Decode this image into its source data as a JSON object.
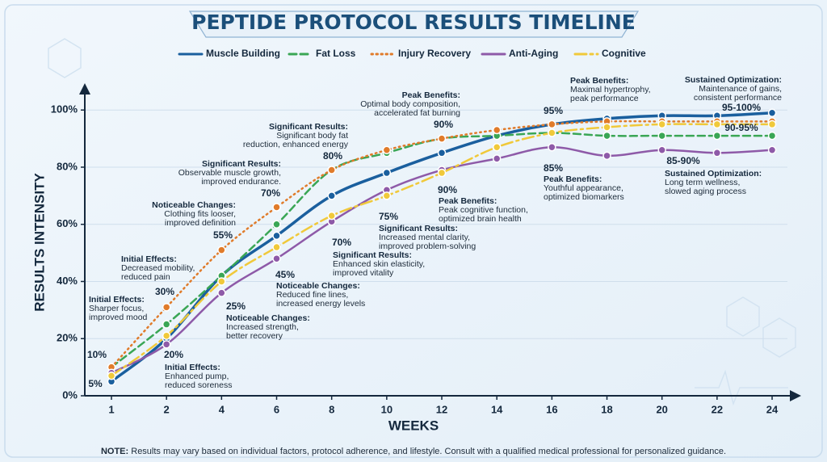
{
  "chart_data": {
    "type": "line",
    "title": "PEPTIDE PROTOCOL RESULTS TIMELINE",
    "xlabel": "WEEKS",
    "ylabel": "RESULTS INTENSITY",
    "categories": [
      "1",
      "2",
      "4",
      "6",
      "8",
      "10",
      "12",
      "14",
      "16",
      "18",
      "20",
      "22",
      "24"
    ],
    "ylim": [
      0,
      106
    ],
    "yticks": [
      {
        "value": 0,
        "label": "0%"
      },
      {
        "value": 20,
        "label": "20%"
      },
      {
        "value": 40,
        "label": "40%"
      },
      {
        "value": 60,
        "label": "60%"
      },
      {
        "value": 80,
        "label": "80%"
      },
      {
        "value": 100,
        "label": "100%"
      }
    ],
    "grid": true,
    "legend": "top",
    "series": [
      {
        "name": "Muscle Building",
        "color": "#1a5f9e",
        "style": "solid",
        "values": [
          5,
          20,
          42,
          56,
          70,
          78,
          85,
          91,
          95,
          97,
          98,
          98,
          99
        ]
      },
      {
        "name": "Fat Loss",
        "color": "#3aa655",
        "style": "dashed",
        "values": [
          10,
          25,
          42,
          60,
          79,
          85,
          90,
          91,
          92,
          91,
          91,
          91,
          91
        ]
      },
      {
        "name": "Injury Recovery",
        "color": "#e07b2a",
        "style": "dotted",
        "values": [
          10,
          31,
          51,
          66,
          79,
          86,
          90,
          93,
          95,
          96,
          96,
          96,
          96
        ]
      },
      {
        "name": "Anti-Aging",
        "color": "#8e5aa8",
        "style": "wavy",
        "values": [
          8,
          18,
          36,
          48,
          61,
          72,
          79,
          83,
          87,
          84,
          86,
          85,
          86
        ]
      },
      {
        "name": "Cognitive",
        "color": "#f0c93a",
        "style": "dashdot",
        "values": [
          7,
          21,
          40,
          52,
          63,
          70,
          78,
          87,
          92,
          94,
          95,
          95,
          95
        ]
      }
    ],
    "point_labels": [
      "10%",
      "5%",
      "30%",
      "20%",
      "55%",
      "25%",
      "70%",
      "45%",
      "80%",
      "70%",
      "75%",
      "90%",
      "90%",
      "95%",
      "85%",
      "95-100%",
      "90-95%",
      "85-90%"
    ],
    "annotations": [
      {
        "heading": "Initial Effects:",
        "lines": [
          "Sharper focus,",
          "improved mood"
        ]
      },
      {
        "heading": "Initial Effects:",
        "lines": [
          "Decreased mobility,",
          "reduced pain"
        ]
      },
      {
        "heading": "Noticeable Changes:",
        "lines": [
          "Clothing fits looser,",
          "improved definition"
        ]
      },
      {
        "heading": "Significant Results:",
        "lines": [
          "Observable muscle growth,",
          "improved endurance."
        ]
      },
      {
        "heading": "Significant Results:",
        "lines": [
          "Significant body fat",
          "reduction, enhanced energy"
        ]
      },
      {
        "heading": "Peak Benefits:",
        "lines": [
          "Optimal body composition,",
          "accelerated fat burning"
        ]
      },
      {
        "heading": "Peak Benefits:",
        "lines": [
          "Maximal hypertrophy,",
          "peak performance"
        ]
      },
      {
        "heading": "Sustained Optimization:",
        "lines": [
          "Maintenance of gains,",
          "consistent performance"
        ]
      },
      {
        "heading": "Initial Effects:",
        "lines": [
          "Enhanced pump,",
          "reduced soreness"
        ]
      },
      {
        "heading": "Noticeable Changes:",
        "lines": [
          "Increased strength,",
          "better recovery"
        ]
      },
      {
        "heading": "Noticeable Changes:",
        "lines": [
          "Reduced fine lines,",
          "increased energy levels"
        ]
      },
      {
        "heading": "Significant Results:",
        "lines": [
          "Enhanced skin elasticity,",
          "improved vitality"
        ]
      },
      {
        "heading": "Significant Results:",
        "lines": [
          "Increased mental clarity,",
          "improved problem-solving"
        ]
      },
      {
        "heading": "Peak Benefits:",
        "lines": [
          "Peak cognitive function,",
          "optimized brain health"
        ]
      },
      {
        "heading": "Peak Benefits:",
        "lines": [
          "Youthful appearance,",
          "optimized biomarkers"
        ]
      },
      {
        "heading": "Sustained Optimization:",
        "lines": [
          "Long term wellness,",
          "slowed aging process"
        ]
      }
    ]
  },
  "footer": {
    "label": "NOTE:",
    "text": "Results may vary based on individual factors, protocol adherence, and lifestyle. Consult with a qualified medical professional for personalized guidance."
  }
}
